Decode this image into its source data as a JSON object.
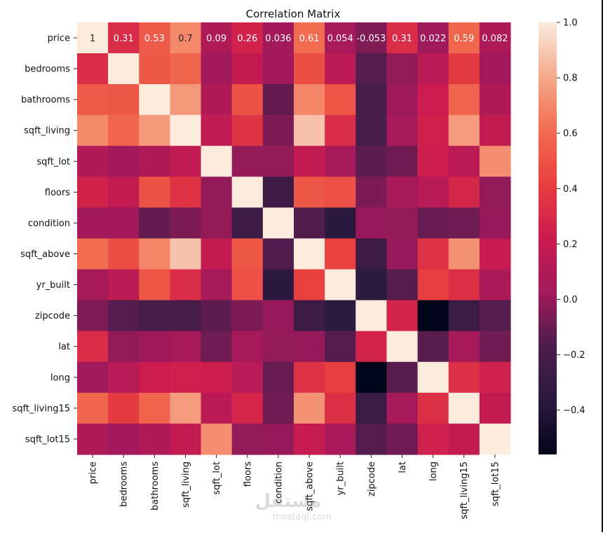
{
  "chart_data": {
    "type": "heatmap",
    "title": "Correlation Matrix",
    "variables": [
      "price",
      "bedrooms",
      "bathrooms",
      "sqft_living",
      "sqft_lot",
      "floors",
      "condition",
      "sqft_above",
      "yr_built",
      "zipcode",
      "lat",
      "long",
      "sqft_living15",
      "sqft_lot15"
    ],
    "matrix": [
      [
        1,
        0.31,
        0.53,
        0.7,
        0.09,
        0.26,
        0.036,
        0.61,
        0.054,
        -0.053,
        0.31,
        0.022,
        0.59,
        0.082
      ],
      [
        0.31,
        1,
        0.52,
        0.58,
        0.03,
        0.18,
        0.03,
        0.48,
        0.15,
        -0.15,
        -0.01,
        0.13,
        0.39,
        0.03
      ],
      [
        0.53,
        0.52,
        1,
        0.75,
        0.09,
        0.5,
        -0.12,
        0.69,
        0.51,
        -0.2,
        0.02,
        0.22,
        0.57,
        0.09
      ],
      [
        0.7,
        0.58,
        0.75,
        1,
        0.17,
        0.35,
        -0.06,
        0.88,
        0.32,
        -0.2,
        0.05,
        0.24,
        0.76,
        0.18
      ],
      [
        0.09,
        0.03,
        0.09,
        0.17,
        1,
        -0.01,
        -0.01,
        0.18,
        0.05,
        -0.13,
        -0.09,
        0.23,
        0.14,
        0.72
      ],
      [
        0.26,
        0.18,
        0.5,
        0.35,
        -0.01,
        1,
        -0.26,
        0.52,
        0.49,
        -0.06,
        0.05,
        0.13,
        0.28,
        -0.01
      ],
      [
        0.036,
        0.03,
        -0.12,
        -0.06,
        -0.01,
        -0.26,
        1,
        -0.16,
        -0.36,
        0.0,
        -0.01,
        -0.11,
        -0.09,
        -0.0
      ],
      [
        0.61,
        0.48,
        0.69,
        0.88,
        0.18,
        0.52,
        -0.16,
        1,
        0.42,
        -0.26,
        0.0,
        0.34,
        0.73,
        0.19
      ],
      [
        0.054,
        0.15,
        0.51,
        0.32,
        0.05,
        0.49,
        -0.36,
        0.42,
        1,
        -0.35,
        -0.15,
        0.41,
        0.33,
        0.07
      ],
      [
        -0.053,
        -0.15,
        -0.2,
        -0.2,
        -0.13,
        -0.06,
        0.0,
        -0.26,
        -0.35,
        1,
        0.27,
        -0.56,
        -0.28,
        -0.15
      ],
      [
        0.31,
        -0.01,
        0.02,
        0.05,
        -0.09,
        0.05,
        -0.01,
        0.0,
        -0.15,
        0.27,
        1,
        -0.14,
        0.05,
        -0.09
      ],
      [
        0.022,
        0.13,
        0.22,
        0.24,
        0.23,
        0.13,
        -0.11,
        0.34,
        0.41,
        -0.56,
        -0.14,
        1,
        0.33,
        0.25
      ],
      [
        0.59,
        0.39,
        0.57,
        0.76,
        0.14,
        0.28,
        -0.09,
        0.73,
        0.33,
        -0.28,
        0.05,
        0.33,
        1,
        0.18
      ],
      [
        0.082,
        0.03,
        0.09,
        0.18,
        0.72,
        -0.01,
        -0.0,
        0.19,
        0.07,
        -0.15,
        -0.09,
        0.25,
        0.18,
        1
      ]
    ],
    "annotated_row_labels": [
      "1",
      "0.31",
      "0.53",
      "0.7",
      "0.09",
      "0.26",
      "0.036",
      "0.61",
      "0.054",
      "-0.053",
      "0.31",
      "0.022",
      "0.59",
      "0.082"
    ],
    "vmin": -0.56,
    "vmax": 1.0,
    "colorbar_ticks": [
      1.0,
      0.8,
      0.6,
      0.4,
      0.2,
      0.0,
      -0.2,
      -0.4
    ],
    "colorbar_tick_labels": [
      "1.0",
      "0.8",
      "0.6",
      "0.4",
      "0.2",
      "0.0",
      "−0.2",
      "−0.4"
    ],
    "colormap": "rocket"
  },
  "watermark": {
    "arabic": "مستقل",
    "latin": "mostaql.com"
  }
}
